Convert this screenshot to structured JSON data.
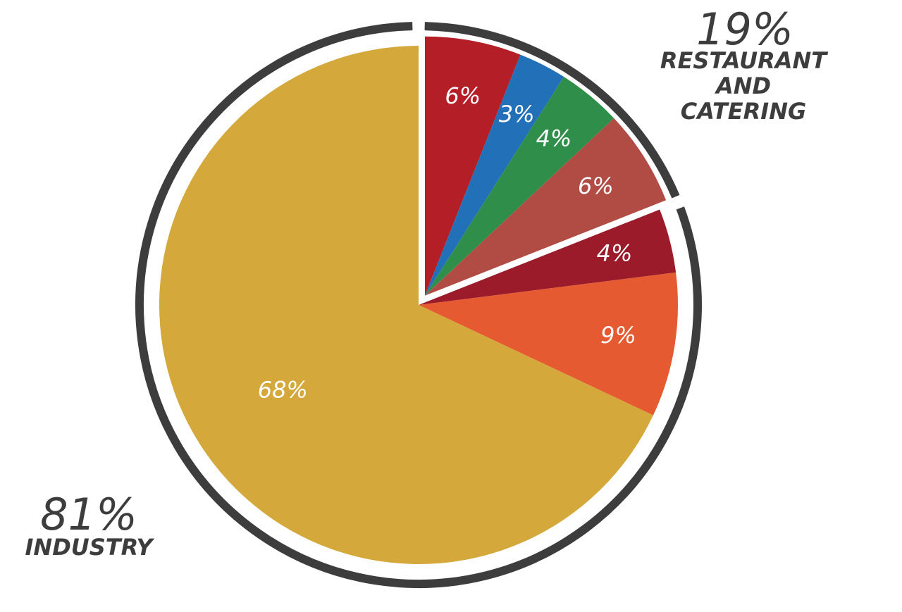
{
  "chart_data": {
    "type": "pie",
    "slices": [
      {
        "value": 6,
        "label": "6%",
        "color": "#b31e27",
        "group": "restaurant"
      },
      {
        "value": 3,
        "label": "3%",
        "color": "#2271b8",
        "group": "restaurant"
      },
      {
        "value": 4,
        "label": "4%",
        "color": "#2f8f4a",
        "group": "restaurant"
      },
      {
        "value": 6,
        "label": "6%",
        "color": "#b04c44",
        "group": "restaurant"
      },
      {
        "value": 4,
        "label": "4%",
        "color": "#9b1b2a",
        "group": "industry"
      },
      {
        "value": 9,
        "label": "9%",
        "color": "#e55a30",
        "group": "industry"
      },
      {
        "value": 68,
        "label": "68%",
        "color": "#d4a83a",
        "group": "industry"
      }
    ],
    "groups": {
      "restaurant": {
        "percent": "19%",
        "name_lines": [
          "RESTAURANT",
          "AND",
          "CATERING"
        ]
      },
      "industry": {
        "percent": "81%",
        "name_lines": [
          "INDUSTRY"
        ]
      }
    },
    "ring_color": "#3d3d3d"
  }
}
